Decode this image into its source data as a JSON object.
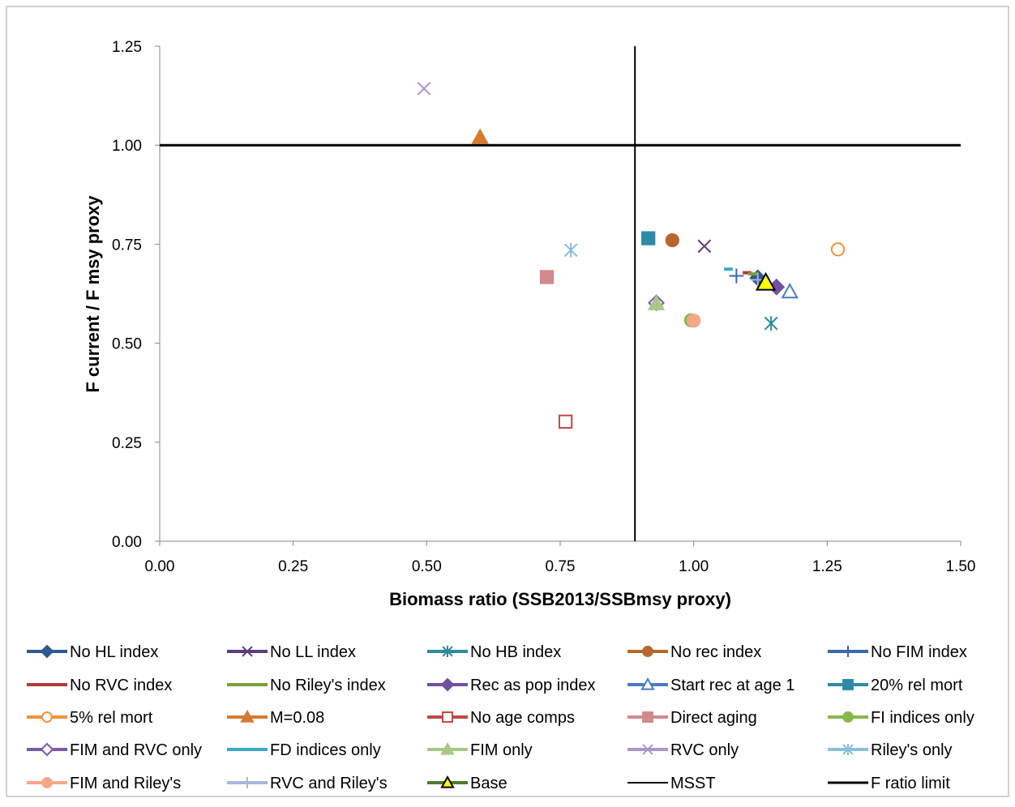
{
  "chart_data": {
    "type": "scatter",
    "xlabel": "Biomass ratio (SSB2013/SSBmsy proxy)",
    "ylabel": "F current / F msy proxy",
    "xlim": [
      0,
      1.5
    ],
    "ylim": [
      0,
      1.25
    ],
    "x_ticks": [
      "0.00",
      "0.25",
      "0.50",
      "0.75",
      "1.00",
      "1.25",
      "1.50"
    ],
    "y_ticks": [
      "0.00",
      "0.25",
      "0.50",
      "0.75",
      "1.00",
      "1.25"
    ],
    "grid": false,
    "legend_position": "bottom",
    "reference_lines": [
      {
        "name": "MSST",
        "orientation": "vertical",
        "value": 0.89
      },
      {
        "name": "F ratio limit",
        "orientation": "horizontal",
        "value": 1.0
      }
    ],
    "series": [
      {
        "name": "No HL index",
        "x": 1.12,
        "y": 0.665,
        "marker": "diamond",
        "color": "#2e5a8f",
        "filled": true
      },
      {
        "name": "No LL index",
        "x": 1.02,
        "y": 0.745,
        "marker": "x",
        "color": "#5e3c7a",
        "filled": false
      },
      {
        "name": "No HB index",
        "x": 1.145,
        "y": 0.55,
        "marker": "star",
        "color": "#2e8a99",
        "filled": false
      },
      {
        "name": "No rec index",
        "x": 0.96,
        "y": 0.76,
        "marker": "circle",
        "color": "#b8672e",
        "filled": true
      },
      {
        "name": "No FIM index",
        "x": 1.08,
        "y": 0.67,
        "marker": "plus",
        "color": "#3a68a8",
        "filled": false
      },
      {
        "name": "No RVC index",
        "x": 1.1,
        "y": 0.678,
        "marker": "dash",
        "color": "#b23a3a",
        "filled": false
      },
      {
        "name": "No Riley's index",
        "x": 1.11,
        "y": 0.675,
        "marker": "dash",
        "color": "#79a03c",
        "filled": false
      },
      {
        "name": "Rec as pop index",
        "x": 1.155,
        "y": 0.642,
        "marker": "diamond",
        "color": "#7050a0",
        "filled": true
      },
      {
        "name": "Start rec at age 1",
        "x": 1.18,
        "y": 0.63,
        "marker": "triangle",
        "color": "#4a7cc0",
        "filled": false
      },
      {
        "name": "20% rel mort",
        "x": 0.915,
        "y": 0.765,
        "marker": "square",
        "color": "#2e8aa8",
        "filled": true
      },
      {
        "name": "5% rel mort",
        "x": 1.27,
        "y": 0.737,
        "marker": "circle",
        "color": "#f0923a",
        "filled": false
      },
      {
        "name": "M=0.08",
        "x": 0.6,
        "y": 1.02,
        "marker": "triangle",
        "color": "#d67a2e",
        "filled": true
      },
      {
        "name": "No age comps",
        "x": 0.76,
        "y": 0.302,
        "marker": "square",
        "color": "#c04848",
        "filled": false
      },
      {
        "name": "Direct aging",
        "x": 0.725,
        "y": 0.667,
        "marker": "square",
        "color": "#d08a8a",
        "filled": true
      },
      {
        "name": "FI indices only",
        "x": 0.995,
        "y": 0.558,
        "marker": "circle",
        "color": "#8ab84a",
        "filled": true
      },
      {
        "name": "FIM and RVC only",
        "x": 0.93,
        "y": 0.602,
        "marker": "diamond",
        "color": "#7a5aa8",
        "filled": false
      },
      {
        "name": "FD indices only",
        "x": 1.065,
        "y": 0.687,
        "marker": "dash",
        "color": "#3aa8c8",
        "filled": false
      },
      {
        "name": "FIM only",
        "x": 0.93,
        "y": 0.6,
        "marker": "triangle",
        "color": "#a8c888",
        "filled": true
      },
      {
        "name": "RVC only",
        "x": 0.495,
        "y": 1.143,
        "marker": "x",
        "color": "#a898c8",
        "filled": false
      },
      {
        "name": "Riley's only",
        "x": 0.77,
        "y": 0.735,
        "marker": "star",
        "color": "#88c0d8",
        "filled": false
      },
      {
        "name": "FIM and Riley's",
        "x": 1.0,
        "y": 0.557,
        "marker": "circle",
        "color": "#f4a888",
        "filled": true
      },
      {
        "name": "RVC and Riley's",
        "x": 1.12,
        "y": 0.66,
        "marker": "plus",
        "color": "#a8b8d8",
        "filled": false
      },
      {
        "name": "Base",
        "x": 1.135,
        "y": 0.653,
        "marker": "triangle",
        "color": "#ffff00",
        "stroke": "#000000",
        "filled": true
      }
    ]
  }
}
